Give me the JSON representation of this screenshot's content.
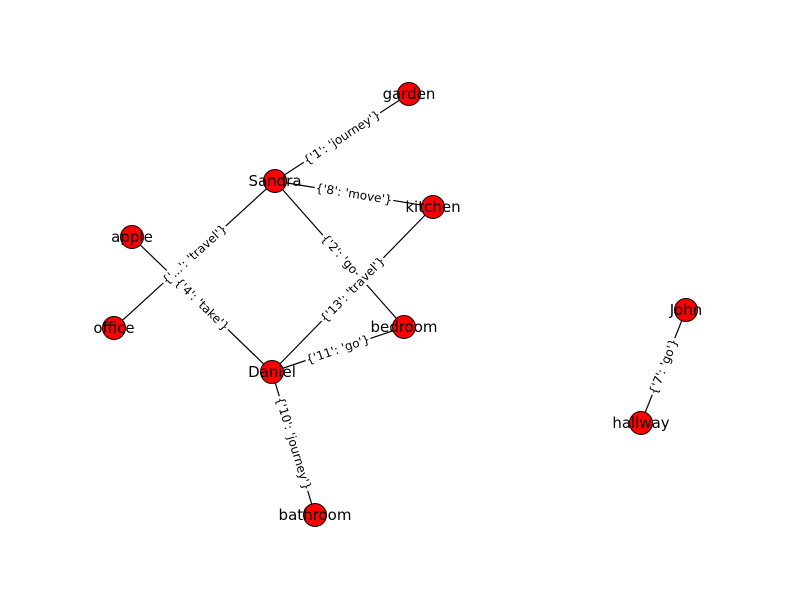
{
  "graph": {
    "node_color": "#ff0000",
    "edge_color": "#000000",
    "nodes": [
      {
        "id": "garden",
        "label": "garden"
      },
      {
        "id": "sandra",
        "label": "Sandra"
      },
      {
        "id": "kitchen",
        "label": "kitchen"
      },
      {
        "id": "apple",
        "label": "apple"
      },
      {
        "id": "office",
        "label": "office"
      },
      {
        "id": "bedroom",
        "label": "bedroom"
      },
      {
        "id": "daniel",
        "label": "Daniel"
      },
      {
        "id": "bathroom",
        "label": "bathroom"
      },
      {
        "id": "john",
        "label": "John"
      },
      {
        "id": "hallway",
        "label": "hallway"
      }
    ],
    "edges": [
      {
        "id": "sandra-garden",
        "source": "sandra",
        "target": "garden",
        "label": "{'1': 'journey'}"
      },
      {
        "id": "sandra-kitchen",
        "source": "sandra",
        "target": "kitchen",
        "label": "{'8': 'move'}"
      },
      {
        "id": "sandra-office",
        "source": "sandra",
        "target": "office",
        "label": "{'...': 'travel'}"
      },
      {
        "id": "sandra-bedroom",
        "source": "sandra",
        "target": "bedroom",
        "label": "{'2': 'go"
      },
      {
        "id": "apple-daniel",
        "source": "apple",
        "target": "daniel",
        "label": "{'4': 'take'}"
      },
      {
        "id": "kitchen-daniel",
        "source": "kitchen",
        "target": "daniel",
        "label": "{'13': 'travel'}"
      },
      {
        "id": "daniel-bedroom",
        "source": "daniel",
        "target": "bedroom",
        "label": "{'11': 'go'}"
      },
      {
        "id": "daniel-bathroom",
        "source": "daniel",
        "target": "bathroom",
        "label": "{'10': 'journey'}"
      },
      {
        "id": "john-hallway",
        "source": "john",
        "target": "hallway",
        "label": "{'7': 'go'}"
      }
    ]
  }
}
